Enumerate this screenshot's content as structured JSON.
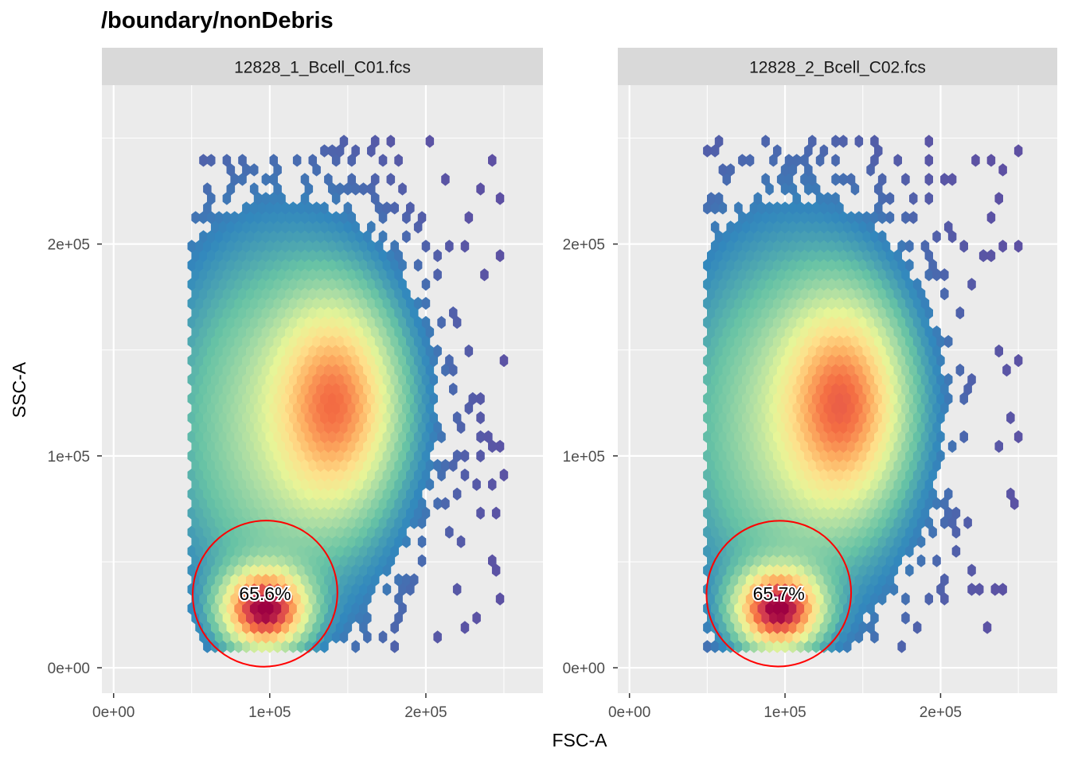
{
  "chart_data": {
    "type": "hexbin",
    "title": "/boundary/nonDebris",
    "xlabel": "FSC-A",
    "ylabel": "SSC-A",
    "xlim": [
      -7500,
      275000
    ],
    "ylim": [
      -12000,
      275000
    ],
    "x_ticks": [
      0,
      100000,
      200000
    ],
    "x_tick_labels": [
      "0e+00",
      "1e+05",
      "2e+05"
    ],
    "y_ticks": [
      0,
      100000,
      200000
    ],
    "y_tick_labels": [
      "0e+00",
      "1e+05",
      "2e+05"
    ],
    "grid": true,
    "legend": "none",
    "colormap": [
      "#5e4fa2",
      "#3288bd",
      "#66c2a5",
      "#abdda4",
      "#e6f598",
      "#fee08b",
      "#fdae61",
      "#f46d43",
      "#d53e4f",
      "#9e0142"
    ],
    "gate_color": "#ff0000",
    "panels": [
      {
        "strip_label": "12828_1_Bcell_C01.fcs",
        "gate_label": "65.6%",
        "gate": {
          "cx": 97000,
          "cy": 35000,
          "rx": 47000,
          "ry": 34000,
          "angle_deg": -62
        },
        "populations": [
          {
            "x": 97000,
            "y": 28000,
            "sx": 16000,
            "sy": 11000,
            "weight": 1.0
          },
          {
            "x": 143000,
            "y": 125000,
            "sx": 24000,
            "sy": 30000,
            "weight": 0.55
          },
          {
            "x": 105000,
            "y": 115000,
            "sx": 45000,
            "sy": 55000,
            "weight": 0.22
          }
        ]
      },
      {
        "strip_label": "12828_2_Bcell_C02.fcs",
        "gate_label": "65.7%",
        "gate": {
          "cx": 96000,
          "cy": 35000,
          "rx": 47000,
          "ry": 34000,
          "angle_deg": -62
        },
        "populations": [
          {
            "x": 96000,
            "y": 28000,
            "sx": 16000,
            "sy": 11000,
            "weight": 1.0
          },
          {
            "x": 138000,
            "y": 125000,
            "sx": 24000,
            "sy": 30000,
            "weight": 0.58
          },
          {
            "x": 103000,
            "y": 115000,
            "sx": 45000,
            "sy": 55000,
            "weight": 0.22
          }
        ]
      }
    ]
  }
}
